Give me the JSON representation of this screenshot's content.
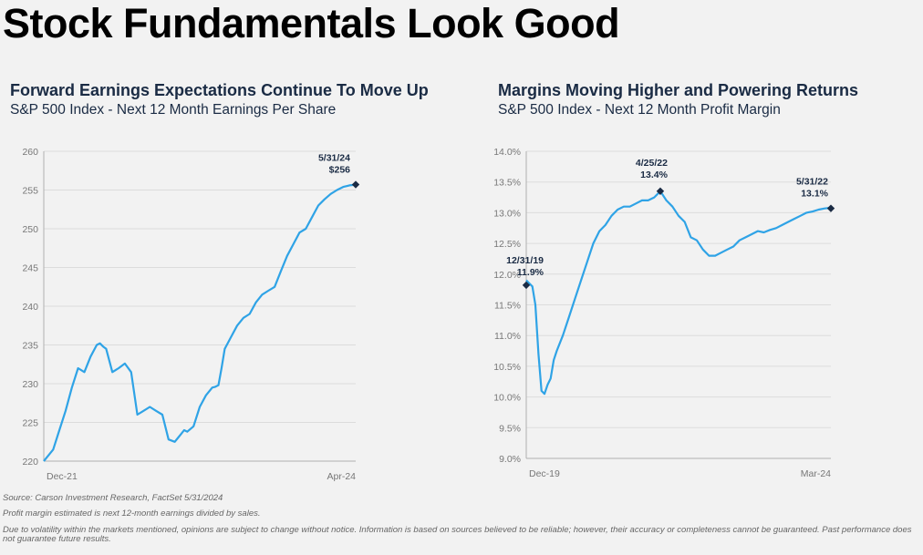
{
  "page": {
    "title": "Stock Fundamentals Look Good"
  },
  "footer": {
    "source": "Source: Carson Investment Research, FactSet 5/31/2024",
    "note": "Profit margin estimated is next 12-month earnings divided by sales.",
    "disclaimer": "Due to volatility within the markets mentioned, opinions are subject to change without notice. Information is based on sources believed to be reliable; however, their accuracy or completeness cannot be guaranteed. Past performance does not guarantee future results."
  },
  "colors": {
    "line": "#2fa3e6",
    "marker": "#1a2b44",
    "grid": "#dcdcdc",
    "axis": "#b0b0b0"
  },
  "chart_data": [
    {
      "type": "line",
      "title": "Forward Earnings Expectations Continue To Move Up",
      "subtitle": "S&P 500 Index - Next 12 Month Earnings Per Share",
      "x_labels": [
        "Dec-21",
        "Apr-24"
      ],
      "x_range": [
        0,
        1
      ],
      "ylim": [
        220,
        260
      ],
      "yticks": [
        220,
        225,
        230,
        235,
        240,
        245,
        250,
        255,
        260
      ],
      "ytick_labels": [
        "220",
        "225",
        "230",
        "235",
        "240",
        "245",
        "250",
        "255",
        "260"
      ],
      "grid": true,
      "series": [
        {
          "x": [
            0,
            0.01,
            0.03,
            0.05,
            0.07,
            0.09,
            0.11,
            0.13,
            0.15,
            0.17,
            0.18,
            0.19,
            0.2,
            0.22,
            0.24,
            0.26,
            0.28,
            0.3,
            0.32,
            0.34,
            0.36,
            0.38,
            0.4,
            0.42,
            0.43,
            0.44,
            0.45,
            0.46,
            0.48,
            0.5,
            0.52,
            0.54,
            0.55,
            0.56,
            0.57,
            0.58,
            0.6,
            0.62,
            0.64,
            0.66,
            0.68,
            0.7,
            0.72,
            0.74,
            0.76,
            0.78,
            0.8,
            0.82,
            0.84,
            0.86,
            0.88,
            0.9,
            0.92,
            0.94,
            0.96,
            0.98,
            1.0
          ],
          "y": [
            220.0,
            220.5,
            221.5,
            224.0,
            226.5,
            229.5,
            232.0,
            231.5,
            233.5,
            235.0,
            235.2,
            234.8,
            234.5,
            231.5,
            232.0,
            232.6,
            231.5,
            226.0,
            226.5,
            227.0,
            226.5,
            226.0,
            222.8,
            222.5,
            223.0,
            223.5,
            224.0,
            223.8,
            224.5,
            227.0,
            228.5,
            229.5,
            229.6,
            229.8,
            232.0,
            234.5,
            236.0,
            237.5,
            238.5,
            239.0,
            240.5,
            241.5,
            242.0,
            242.5,
            244.5,
            246.5,
            248.0,
            249.5,
            250.0,
            251.5,
            253.0,
            253.8,
            254.5,
            255.0,
            255.4,
            255.6,
            255.7
          ]
        }
      ],
      "annotations": [
        {
          "x": 1.0,
          "y": 255.7,
          "label_date": "5/31/24",
          "label_value": "$256"
        }
      ]
    },
    {
      "type": "line",
      "title": "Margins Moving Higher and Powering Returns",
      "subtitle": "S&P 500 Index - Next 12 Month Profit Margin",
      "x_labels": [
        "Dec-19",
        "Mar-24"
      ],
      "x_range": [
        0,
        1
      ],
      "ylim": [
        9.0,
        14.0
      ],
      "yticks": [
        9.0,
        9.5,
        10.0,
        10.5,
        11.0,
        11.5,
        12.0,
        12.5,
        13.0,
        13.5,
        14.0
      ],
      "ytick_labels": [
        "9.0%",
        "9.5%",
        "10.0%",
        "10.5%",
        "11.0%",
        "11.5%",
        "12.0%",
        "12.5%",
        "13.0%",
        "13.5%",
        "14.0%"
      ],
      "grid": true,
      "series": [
        {
          "x": [
            0,
            0.01,
            0.02,
            0.03,
            0.04,
            0.05,
            0.06,
            0.07,
            0.08,
            0.09,
            0.1,
            0.12,
            0.14,
            0.16,
            0.18,
            0.2,
            0.22,
            0.24,
            0.26,
            0.28,
            0.3,
            0.32,
            0.34,
            0.36,
            0.38,
            0.4,
            0.42,
            0.44,
            0.46,
            0.48,
            0.5,
            0.52,
            0.54,
            0.56,
            0.58,
            0.6,
            0.62,
            0.64,
            0.66,
            0.68,
            0.7,
            0.72,
            0.74,
            0.76,
            0.78,
            0.8,
            0.82,
            0.84,
            0.86,
            0.88,
            0.9,
            0.92,
            0.94,
            0.96,
            0.98,
            1.0
          ],
          "y": [
            11.9,
            11.85,
            11.8,
            11.5,
            10.7,
            10.1,
            10.05,
            10.2,
            10.3,
            10.6,
            10.75,
            11.0,
            11.3,
            11.6,
            11.9,
            12.2,
            12.5,
            12.7,
            12.8,
            12.95,
            13.05,
            13.1,
            13.1,
            13.15,
            13.2,
            13.2,
            13.25,
            13.35,
            13.2,
            13.1,
            12.95,
            12.85,
            12.6,
            12.55,
            12.4,
            12.3,
            12.3,
            12.35,
            12.4,
            12.45,
            12.55,
            12.6,
            12.65,
            12.7,
            12.68,
            12.72,
            12.75,
            12.8,
            12.85,
            12.9,
            12.95,
            13.0,
            13.02,
            13.05,
            13.07,
            13.08
          ]
        }
      ],
      "annotations": [
        {
          "x": 0.0,
          "y": 11.82,
          "label_date": "12/31/19",
          "label_value": "11.9%"
        },
        {
          "x": 0.44,
          "y": 13.35,
          "label_date": "4/25/22",
          "label_value": "13.4%"
        },
        {
          "x": 1.0,
          "y": 13.07,
          "label_date": "5/31/22",
          "label_value": "13.1%"
        }
      ]
    }
  ]
}
